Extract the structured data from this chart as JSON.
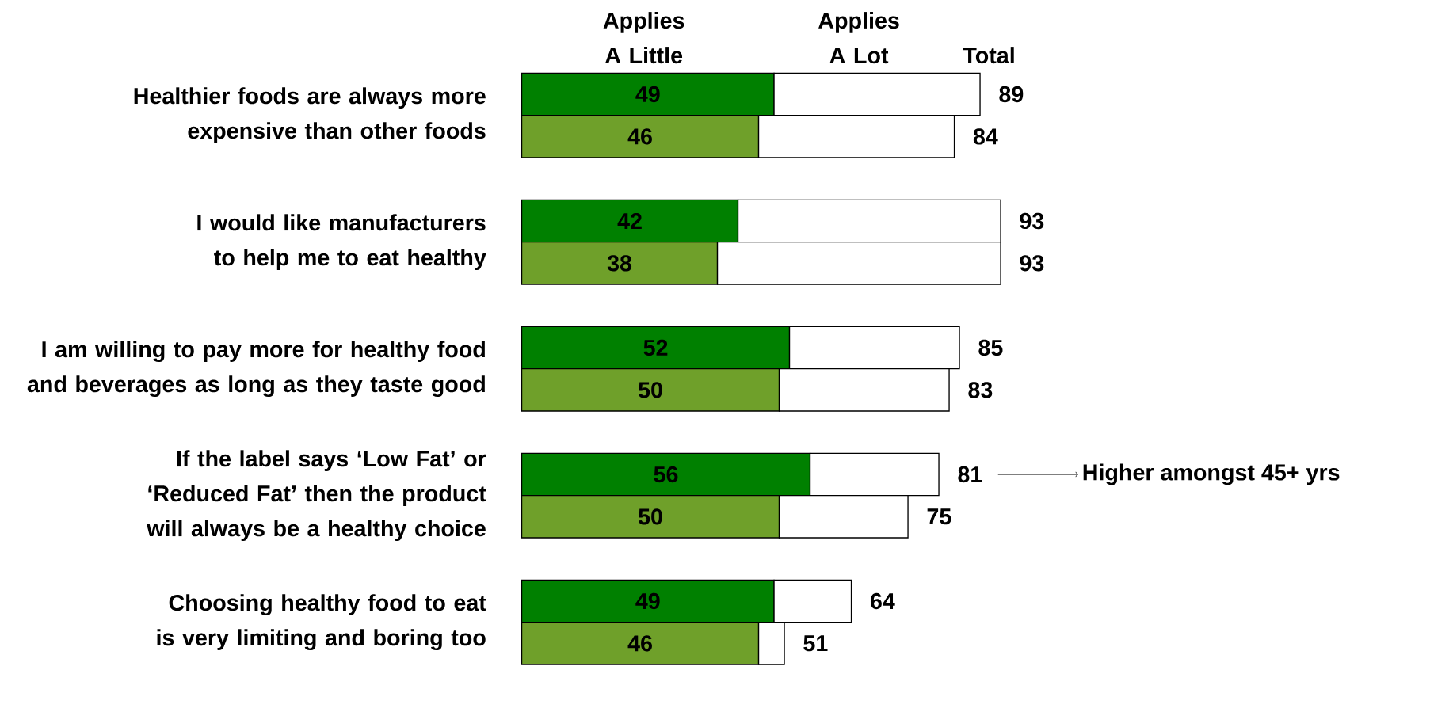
{
  "chart_data": [
    {
      "type": "bar",
      "orientation": "horizontal",
      "stacked": true,
      "categories": [
        "Healthier foods are always more expensive than other foods",
        "I would like manufacturers to help me to eat healthy",
        "I am willing to pay more for healthy food and beverages as long as they taste good",
        "If the label says ‘Low Fat’ or ‘Reduced Fat’ then the product will always be a healthy choice",
        "Choosing healthy food to eat is very limiting and boring too"
      ],
      "series": [
        {
          "color": "#008000",
          "values": [
            49,
            42,
            52,
            56,
            49
          ],
          "value_labels": [
            "49",
            "42",
            "52",
            "56",
            "49"
          ]
        },
        {
          "color": "#ffffff",
          "values": [
            40,
            51,
            33,
            25,
            15
          ]
        }
      ],
      "totals": [
        "89",
        "93",
        "85",
        "81",
        "64"
      ],
      "annotations": [
        "Applies A Little",
        "Applies A Lot",
        "Total",
        "Higher amongst 45+ yrs"
      ]
    },
    {
      "type": "bar",
      "orientation": "horizontal",
      "stacked": true,
      "categories": [
        null,
        null,
        null,
        null,
        null
      ],
      "series": [
        {
          "color": "#6fa02a",
          "values": [
            46,
            38,
            50,
            50,
            46
          ],
          "value_labels": [
            "46",
            "38",
            "50",
            "50",
            "46"
          ]
        },
        {
          "color": "#ffffff",
          "values": [
            38,
            55,
            33,
            25,
            5
          ]
        }
      ],
      "totals": [
        "84",
        "93",
        "83",
        "75",
        "51"
      ]
    }
  ]
}
